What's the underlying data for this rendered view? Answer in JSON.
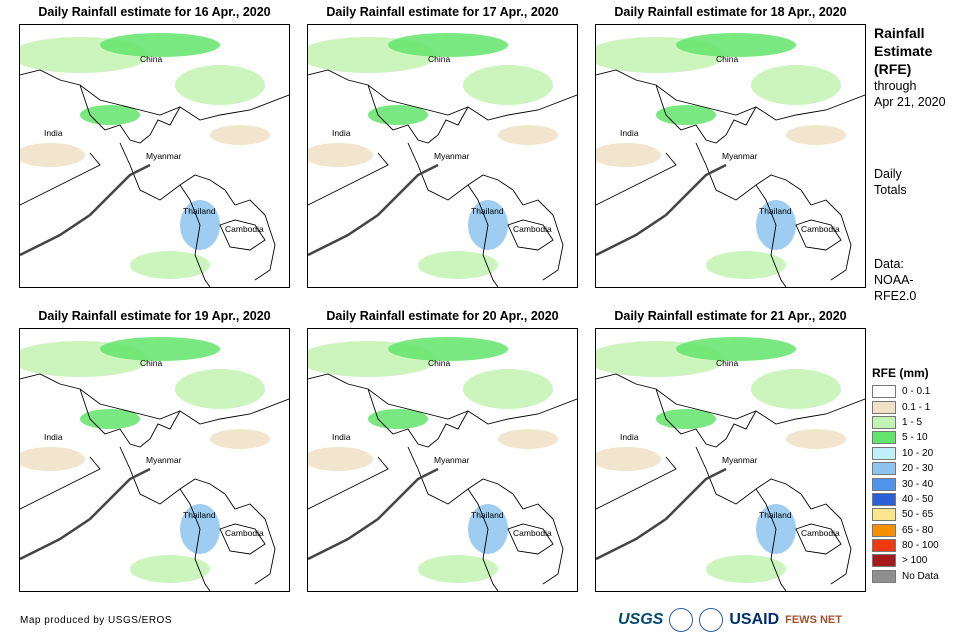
{
  "panels": [
    {
      "title": "Daily Rainfall estimate for 16 Apr., 2020",
      "labels": {
        "china": "China",
        "india": "India",
        "myanmar": "Myanmar",
        "thailand": "Thailand",
        "cambodia": "Cambodia"
      }
    },
    {
      "title": "Daily Rainfall estimate for 17 Apr., 2020",
      "labels": {
        "china": "China",
        "india": "India",
        "myanmar": "Myanmar",
        "thailand": "Thailand",
        "cambodia": "Cambodia"
      }
    },
    {
      "title": "Daily Rainfall estimate for 18 Apr., 2020",
      "labels": {
        "china": "China",
        "india": "India",
        "myanmar": "Myanmar",
        "thailand": "Thailand",
        "cambodia": "Cambodia"
      }
    },
    {
      "title": "Daily Rainfall estimate for 19 Apr., 2020",
      "labels": {
        "china": "China",
        "india": "India",
        "myanmar": "Myanmar",
        "thailand": "Thailand",
        "cambodia": "Cambodia"
      }
    },
    {
      "title": "Daily Rainfall estimate for 20 Apr., 2020",
      "labels": {
        "china": "China",
        "india": "India",
        "myanmar": "Myanmar",
        "thailand": "Thailand",
        "cambodia": "Cambodia"
      }
    },
    {
      "title": "Daily Rainfall estimate for 21 Apr., 2020",
      "labels": {
        "china": "China",
        "india": "India",
        "myanmar": "Myanmar",
        "thailand": "Thailand",
        "cambodia": "Cambodia"
      }
    }
  ],
  "sidebar": {
    "title_lines": [
      "Rainfall",
      "Estimate",
      "(RFE)"
    ],
    "through": "through",
    "date": "Apr 21, 2020",
    "daily": "Daily",
    "totals": "Totals",
    "data_label": "Data:",
    "data_source_1": "NOAA-",
    "data_source_2": "RFE2.0"
  },
  "legend": {
    "title": "RFE (mm)",
    "items": [
      {
        "label": "0 - 0.1",
        "color": "#ffffff"
      },
      {
        "label": "0.1 - 1",
        "color": "#efe0c6"
      },
      {
        "label": "1 - 5",
        "color": "#c3f3b2"
      },
      {
        "label": "5 - 10",
        "color": "#63e46b"
      },
      {
        "label": "10 - 20",
        "color": "#bfeff7"
      },
      {
        "label": "20 - 30",
        "color": "#8ec3ee"
      },
      {
        "label": "30 - 40",
        "color": "#4f94ea"
      },
      {
        "label": "40 - 50",
        "color": "#2b5fd8"
      },
      {
        "label": "50 - 65",
        "color": "#fbe58a"
      },
      {
        "label": "65 - 80",
        "color": "#f59000"
      },
      {
        "label": "80 - 100",
        "color": "#ef3a10"
      },
      {
        "label": "> 100",
        "color": "#a51a1a"
      },
      {
        "label": "No Data",
        "color": "#8f8f8f"
      }
    ]
  },
  "footer": {
    "credit": "Map produced by USGS/EROS",
    "logos": {
      "usgs": "USGS",
      "usaid": "USAID",
      "fews": "FEWS NET"
    }
  }
}
